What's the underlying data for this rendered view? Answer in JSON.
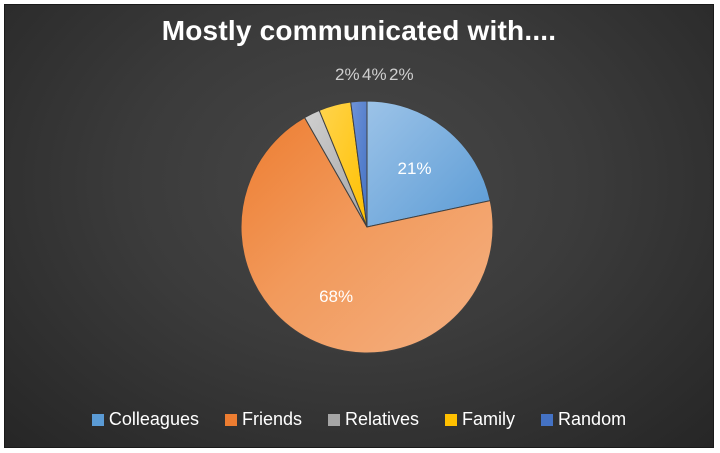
{
  "chart_data": {
    "type": "pie",
    "title": "Mostly communicated with....",
    "categories": [
      "Colleagues",
      "Friends",
      "Relatives",
      "Family",
      "Random"
    ],
    "values": [
      21,
      68,
      2,
      4,
      2
    ],
    "labels": [
      "21%",
      "68%",
      "2%",
      "4%",
      "2%"
    ],
    "colors": [
      "#5b9bd5",
      "#ed7d31",
      "#a5a5a5",
      "#ffc000",
      "#4472c4"
    ],
    "legend_position": "bottom"
  }
}
